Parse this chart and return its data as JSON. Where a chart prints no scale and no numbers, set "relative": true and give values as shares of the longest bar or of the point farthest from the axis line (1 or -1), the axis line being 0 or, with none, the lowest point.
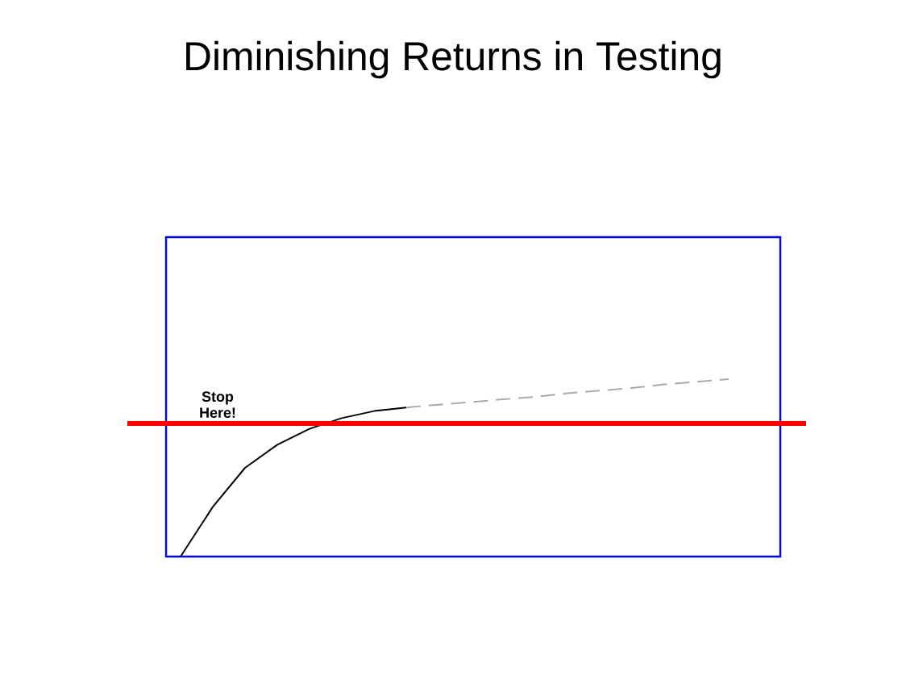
{
  "chart_data": {
    "type": "line",
    "title": "Diminishing Returns in Testing",
    "relative": true,
    "categories": [
      null,
      null,
      null,
      null,
      null,
      null,
      null,
      null,
      null,
      null,
      null,
      null,
      null,
      null,
      null,
      null,
      null,
      null
    ],
    "series": [
      {
        "color": "#000000",
        "line_style": "solid",
        "values": [
          0,
          0.28,
          0.5,
          0.63,
          0.72,
          0.78,
          0.82,
          0.84,
          null,
          null,
          null,
          null,
          null,
          null,
          null,
          null,
          null,
          null
        ]
      },
      {
        "color": "#aaaaaa",
        "line_style": "dashed",
        "values": [
          null,
          null,
          null,
          null,
          null,
          null,
          null,
          0.84,
          0.856,
          0.87,
          0.886,
          0.9,
          0.92,
          0.935,
          0.95,
          0.97,
          0.985,
          1.0
        ]
      }
    ],
    "ref_lines": [
      {
        "axis": "y",
        "value": 0.75,
        "label": "Stop Here!",
        "color": "#ff0000"
      }
    ]
  }
}
